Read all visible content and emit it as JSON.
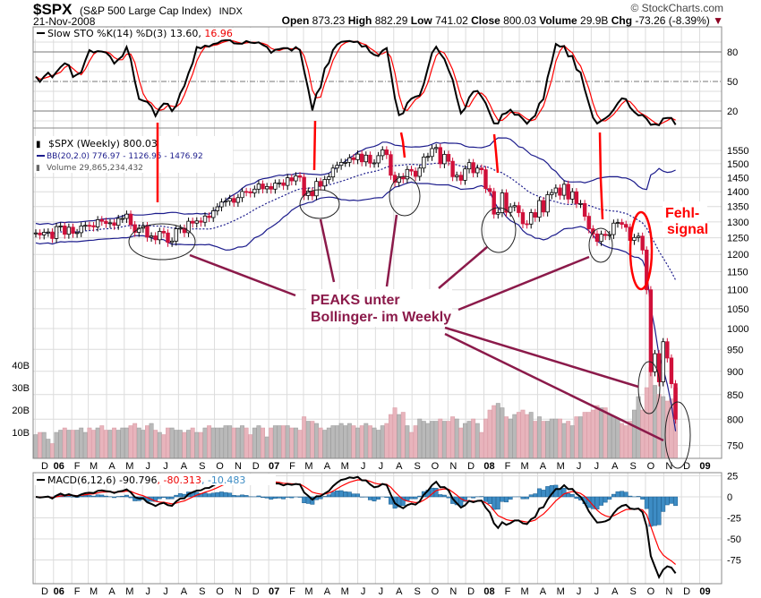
{
  "header": {
    "symbol": "$SPX",
    "name": "(S&P 500 Large Cap Index)",
    "exchange": "INDX",
    "date": "21-Nov-2008",
    "watermark": "© StockCharts.com",
    "open_label": "Open",
    "open": "873.23",
    "high_label": "High",
    "high": "882.29",
    "low_label": "Low",
    "low": "741.02",
    "close_label": "Close",
    "close": "800.03",
    "volume_label": "Volume",
    "volume": "29.9B",
    "chg_label": "Chg",
    "chg": "-73.26 (-8.39%)",
    "chg_arrow": "▼"
  },
  "colors": {
    "up": "#000000",
    "down": "#d0103a",
    "bb": "#1c1c8c",
    "sto_k": "#000000",
    "sto_d": "#ff0000",
    "macd": "#000000",
    "signal": "#ff0000",
    "histogram": "#3d8cc4",
    "vol_up": "#b9b9b9",
    "vol_down": "#e8b4bc",
    "annotation": "#8b1a4a",
    "annotation_red": "#ff0000"
  },
  "legends": {
    "sto": "Slow STO %K(14) %D(3) 13.60,",
    "sto_d": " 16.96",
    "price": "$SPX (Weekly) 800.03",
    "bb": "BB(20,2.0) 776.97 - 1126.95 - 1476.92",
    "volume": "Volume 29,865,234,432",
    "macd": "MACD(6,12,6) -90.796",
    "macd_signal": ", -80.313",
    "macd_hist": ", -10.483"
  },
  "annotations": {
    "peaks_line1": "PEAKS unter",
    "peaks_line2": "Bollinger- im Weekly",
    "fehl_line1": "Fehl-",
    "fehl_line2": "signal"
  },
  "chart_data": {
    "type": "candlestick",
    "title": "$SPX (S&P 500 Large Cap Index) INDX",
    "period": "weekly",
    "first_week": "2005-12-02",
    "last_week": "2008-11-21",
    "price_scale": "log",
    "price_ylim": [
      720,
      1600
    ],
    "price_ticks": [
      750,
      800,
      850,
      900,
      950,
      1000,
      1050,
      1100,
      1150,
      1200,
      1250,
      1300,
      1350,
      1400,
      1450,
      1500,
      1550
    ],
    "volume_ticks": [
      "10B",
      "20B",
      "30B",
      "40B"
    ],
    "volume_tick_values": [
      10,
      20,
      30,
      40
    ],
    "sto_ticks": [
      80,
      50,
      20
    ],
    "macd_ticks": [
      25,
      0,
      -25,
      -50,
      -75
    ],
    "x_tick_labels": [
      "D",
      "06",
      "F",
      "M",
      "A",
      "M",
      "J",
      "J",
      "A",
      "S",
      "O",
      "N",
      "D",
      "07",
      "F",
      "M",
      "A",
      "M",
      "J",
      "J",
      "A",
      "S",
      "O",
      "N",
      "D",
      "08",
      "F",
      "M",
      "A",
      "M",
      "J",
      "J",
      "A",
      "S",
      "O",
      "N",
      "D",
      "09"
    ],
    "close": [
      1265,
      1259,
      1267,
      1268,
      1248,
      1285,
      1287,
      1261,
      1283,
      1264,
      1266,
      1287,
      1289,
      1288,
      1284,
      1307,
      1302,
      1295,
      1297,
      1289,
      1311,
      1311,
      1325,
      1291,
      1267,
      1280,
      1288,
      1252,
      1256,
      1244,
      1270,
      1265,
      1236,
      1240,
      1278,
      1280,
      1266,
      1302,
      1296,
      1303,
      1299,
      1319,
      1314,
      1336,
      1349,
      1365,
      1368,
      1377,
      1364,
      1380,
      1401,
      1400,
      1396,
      1409,
      1427,
      1410,
      1418,
      1409,
      1430,
      1431,
      1422,
      1449,
      1438,
      1456,
      1451,
      1387,
      1402,
      1386,
      1436,
      1420,
      1443,
      1452,
      1484,
      1494,
      1505,
      1505,
      1522,
      1515,
      1536,
      1507,
      1532,
      1502,
      1503,
      1530,
      1552,
      1534,
      1458,
      1433,
      1453,
      1445,
      1479,
      1473,
      1454,
      1484,
      1525,
      1527,
      1557,
      1561,
      1500,
      1535,
      1509,
      1453,
      1458,
      1440,
      1481,
      1504,
      1467,
      1484,
      1478,
      1411,
      1401,
      1325,
      1330,
      1396,
      1331,
      1349,
      1353,
      1330,
      1294,
      1293,
      1330,
      1315,
      1370,
      1332,
      1390,
      1397,
      1413,
      1388,
      1426,
      1375,
      1400,
      1360,
      1360,
      1318,
      1278,
      1262,
      1239,
      1261,
      1257,
      1260,
      1296,
      1298,
      1292,
      1283,
      1242,
      1251,
      1255,
      1213,
      1100,
      899,
      940,
      877,
      968,
      930,
      873,
      800.03
    ],
    "volume_billions": [
      9,
      10,
      10,
      7,
      5,
      10,
      11,
      12,
      11,
      11,
      11,
      12,
      10,
      12,
      11,
      12,
      13,
      11,
      11,
      12,
      11,
      12,
      12,
      13,
      14,
      12,
      11,
      13,
      14,
      11,
      10,
      9,
      12,
      12,
      11,
      11,
      10,
      11,
      12,
      10,
      10,
      12,
      13,
      12,
      12,
      12,
      13,
      13,
      12,
      12,
      13,
      12,
      9,
      12,
      13,
      12,
      8,
      12,
      13,
      13,
      13,
      13,
      12,
      12,
      11,
      17,
      15,
      15,
      14,
      12,
      11,
      12,
      13,
      13,
      14,
      13,
      14,
      13,
      12,
      13,
      14,
      13,
      12,
      11,
      13,
      14,
      18,
      21,
      18,
      19,
      13,
      10,
      13,
      16,
      15,
      14,
      15,
      15,
      16,
      15,
      15,
      17,
      16,
      12,
      14,
      15,
      16,
      14,
      10,
      16,
      20,
      22,
      23,
      21,
      17,
      16,
      18,
      19,
      20,
      18,
      19,
      15,
      17,
      15,
      15,
      16,
      16,
      16,
      14,
      15,
      13,
      17,
      17,
      19,
      19,
      20,
      22,
      21,
      21,
      18,
      17,
      16,
      14,
      13,
      15,
      20,
      26,
      20,
      30,
      39,
      31,
      27,
      26,
      24,
      25,
      29.9
    ],
    "indicators": {
      "bollinger": {
        "period": 20,
        "stddev": 2.0,
        "lower": 776.97,
        "middle": 1126.95,
        "upper": 1476.92
      },
      "slow_sto": {
        "k": 14,
        "d": 3,
        "k_value": 13.6,
        "d_value": 16.96
      },
      "macd": {
        "fast": 6,
        "slow": 12,
        "signal": 6,
        "macd": -90.796,
        "signal_value": -80.313,
        "histogram": -10.483
      }
    }
  }
}
